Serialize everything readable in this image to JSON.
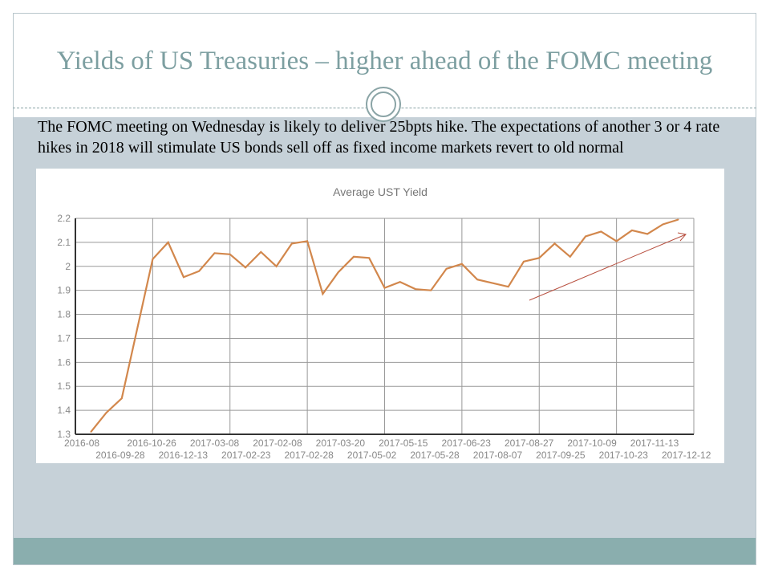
{
  "slide": {
    "title": "Yields of US Treasuries – higher ahead of the FOMC meeting",
    "body": "The FOMC meeting on Wednesday is likely to deliver 25bpts hike. The expectations of another 3 or 4 rate hikes in 2018 will stimulate  US bonds sell off as fixed income markets revert to old normal"
  },
  "colors": {
    "line": "#d2874c",
    "arrow": "#b85040",
    "title": "#7d9fa1",
    "background_panel": "#c6d1d8",
    "footer_band": "#8aaeae"
  },
  "chart_data": {
    "type": "line",
    "title": "Average UST Yield",
    "xlabel": "",
    "ylabel": "",
    "ylim": [
      1.3,
      2.2
    ],
    "yticks": [
      "1.3",
      "1.4",
      "1.5",
      "1.6",
      "1.7",
      "1.8",
      "1.9",
      "2",
      "2.1",
      "2.2"
    ],
    "grid": true,
    "x_first_label": "2016-08",
    "x_last_label": "2017-12-12",
    "xtick_labels": [
      "2016-08",
      "2016-09-28",
      "2016-10-26",
      "2016-12-13",
      "2017-03-08",
      "2017-02-23",
      "2017-02-08",
      "2017-02-28",
      "2017-03-20",
      "2017-05-02",
      "2017-05-15",
      "2017-05-28",
      "2017-06-23",
      "2017-08-07",
      "2017-08-27",
      "2017-09-25",
      "2017-10-09",
      "2017-10-23",
      "2017-11-13",
      "2017-12-12"
    ],
    "values": [
      1.31,
      1.39,
      1.45,
      1.74,
      2.03,
      2.1,
      1.955,
      1.98,
      2.055,
      2.05,
      1.995,
      2.06,
      2.0,
      2.095,
      2.105,
      1.885,
      1.975,
      2.04,
      2.035,
      1.91,
      1.935,
      1.905,
      1.9,
      1.99,
      2.01,
      1.945,
      1.93,
      1.915,
      2.02,
      2.035,
      2.095,
      2.04,
      2.125,
      2.145,
      2.105,
      2.15,
      2.135,
      2.175,
      2.195
    ],
    "annotation": "upward trend arrow"
  }
}
